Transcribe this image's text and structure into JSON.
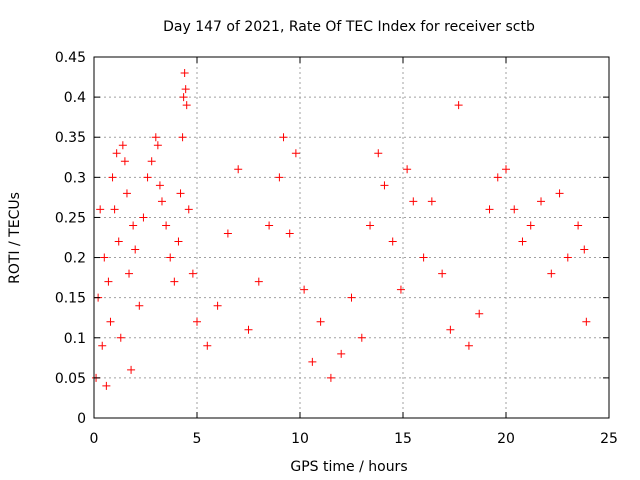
{
  "chart_data": {
    "type": "scatter",
    "title": "Day 147 of 2021, Rate Of TEC Index for receiver sctb",
    "xlabel": "GPS time / hours",
    "ylabel": "ROTI / TECUs",
    "xlim": [
      0,
      25
    ],
    "ylim": [
      0,
      0.45
    ],
    "xticks": [
      0,
      5,
      10,
      15,
      20,
      25
    ],
    "yticks": [
      0,
      0.05,
      0.1,
      0.15,
      0.2,
      0.25,
      0.3,
      0.35,
      0.4,
      0.45
    ],
    "grid": true,
    "marker": "+",
    "series": [
      {
        "color": "#ff0000",
        "points": [
          [
            0.1,
            0.05
          ],
          [
            0.2,
            0.15
          ],
          [
            0.3,
            0.26
          ],
          [
            0.4,
            0.09
          ],
          [
            0.5,
            0.2
          ],
          [
            0.6,
            0.04
          ],
          [
            0.7,
            0.17
          ],
          [
            0.8,
            0.12
          ],
          [
            0.9,
            0.3
          ],
          [
            1.0,
            0.26
          ],
          [
            1.1,
            0.33
          ],
          [
            1.2,
            0.22
          ],
          [
            1.3,
            0.1
          ],
          [
            1.4,
            0.34
          ],
          [
            1.5,
            0.32
          ],
          [
            1.6,
            0.28
          ],
          [
            1.7,
            0.18
          ],
          [
            1.8,
            0.06
          ],
          [
            1.9,
            0.24
          ],
          [
            2.0,
            0.21
          ],
          [
            2.2,
            0.14
          ],
          [
            2.4,
            0.25
          ],
          [
            2.6,
            0.3
          ],
          [
            2.8,
            0.32
          ],
          [
            3.0,
            0.35
          ],
          [
            3.1,
            0.34
          ],
          [
            3.2,
            0.29
          ],
          [
            3.3,
            0.27
          ],
          [
            3.5,
            0.24
          ],
          [
            3.7,
            0.2
          ],
          [
            3.9,
            0.17
          ],
          [
            4.1,
            0.22
          ],
          [
            4.2,
            0.28
          ],
          [
            4.3,
            0.35
          ],
          [
            4.35,
            0.4
          ],
          [
            4.4,
            0.43
          ],
          [
            4.45,
            0.41
          ],
          [
            4.5,
            0.39
          ],
          [
            4.6,
            0.26
          ],
          [
            4.8,
            0.18
          ],
          [
            5.0,
            0.12
          ],
          [
            5.5,
            0.09
          ],
          [
            6.0,
            0.14
          ],
          [
            6.5,
            0.23
          ],
          [
            7.0,
            0.31
          ],
          [
            7.5,
            0.11
          ],
          [
            8.0,
            0.17
          ],
          [
            8.5,
            0.24
          ],
          [
            9.0,
            0.3
          ],
          [
            9.2,
            0.35
          ],
          [
            9.5,
            0.23
          ],
          [
            9.8,
            0.33
          ],
          [
            10.2,
            0.16
          ],
          [
            10.6,
            0.07
          ],
          [
            11.0,
            0.12
          ],
          [
            11.5,
            0.05
          ],
          [
            12.0,
            0.08
          ],
          [
            12.5,
            0.15
          ],
          [
            13.0,
            0.1
          ],
          [
            13.4,
            0.24
          ],
          [
            13.8,
            0.33
          ],
          [
            14.1,
            0.29
          ],
          [
            14.5,
            0.22
          ],
          [
            14.9,
            0.16
          ],
          [
            15.2,
            0.31
          ],
          [
            15.5,
            0.27
          ],
          [
            16.0,
            0.2
          ],
          [
            16.4,
            0.27
          ],
          [
            16.9,
            0.18
          ],
          [
            17.3,
            0.11
          ],
          [
            17.7,
            0.39
          ],
          [
            18.2,
            0.09
          ],
          [
            18.7,
            0.13
          ],
          [
            19.2,
            0.26
          ],
          [
            19.6,
            0.3
          ],
          [
            20.0,
            0.31
          ],
          [
            20.4,
            0.26
          ],
          [
            20.8,
            0.22
          ],
          [
            21.2,
            0.24
          ],
          [
            21.7,
            0.27
          ],
          [
            22.2,
            0.18
          ],
          [
            22.6,
            0.28
          ],
          [
            23.0,
            0.2
          ],
          [
            23.5,
            0.24
          ],
          [
            23.8,
            0.21
          ],
          [
            23.9,
            0.12
          ]
        ]
      }
    ]
  }
}
